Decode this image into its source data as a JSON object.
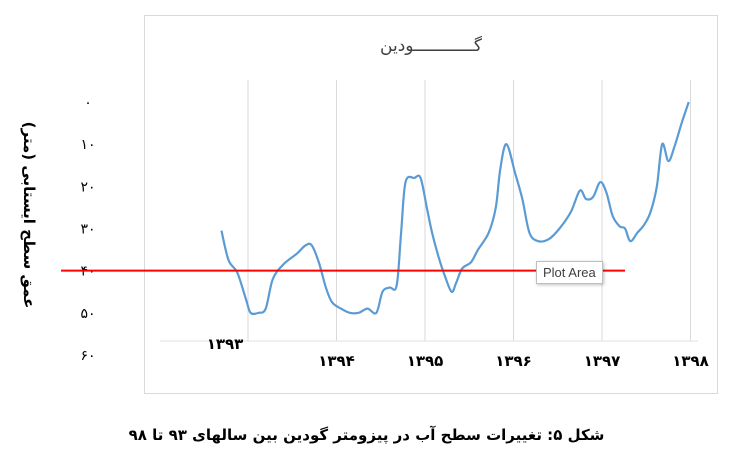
{
  "chart_data": {
    "type": "line",
    "title": "گــــــــــــودین",
    "ylabel": "عمق سطح ایستابی (متر)",
    "xlabel": "",
    "y_tick_labels": [
      "۰",
      "۱۰",
      "۲۰",
      "۳۰",
      "۴۰",
      "۵۰",
      "۶۰"
    ],
    "ylim": [
      0,
      60
    ],
    "y_inverted": true,
    "grid": {
      "horizontal": false,
      "vertical": true
    },
    "x_tick_labels": [
      {
        "label": "۱۳۹۳",
        "x": 0
      },
      {
        "label": "۱۳۹۴",
        "x": 1
      },
      {
        "label": "۱۳۹۵",
        "x": 2
      },
      {
        "label": "۱۳۹۶",
        "x": 3
      },
      {
        "label": "۱۳۹۷",
        "x": 4
      },
      {
        "label": "۱۳۹۸",
        "x": 5
      }
    ],
    "series": [
      {
        "color": "#5b9bd5",
        "points": [
          [
            -0.3,
            30.5
          ],
          [
            -0.22,
            37.5
          ],
          [
            -0.12,
            40.5
          ],
          [
            -0.02,
            47
          ],
          [
            0.03,
            50
          ],
          [
            0.12,
            50
          ],
          [
            0.2,
            49
          ],
          [
            0.28,
            42
          ],
          [
            0.4,
            38.5
          ],
          [
            0.55,
            36
          ],
          [
            0.65,
            34
          ],
          [
            0.72,
            34
          ],
          [
            0.8,
            38
          ],
          [
            0.88,
            44
          ],
          [
            0.95,
            47.5
          ],
          [
            1.05,
            49
          ],
          [
            1.15,
            50
          ],
          [
            1.25,
            50
          ],
          [
            1.35,
            49
          ],
          [
            1.45,
            50
          ],
          [
            1.52,
            45
          ],
          [
            1.6,
            44
          ],
          [
            1.68,
            43.5
          ],
          [
            1.73,
            31
          ],
          [
            1.78,
            19
          ],
          [
            1.88,
            18
          ],
          [
            1.95,
            18
          ],
          [
            2.02,
            25
          ],
          [
            2.08,
            31
          ],
          [
            2.15,
            36.5
          ],
          [
            2.22,
            41
          ],
          [
            2.3,
            45
          ],
          [
            2.35,
            43
          ],
          [
            2.42,
            39.5
          ],
          [
            2.52,
            38
          ],
          [
            2.6,
            35
          ],
          [
            2.72,
            31
          ],
          [
            2.8,
            25
          ],
          [
            2.85,
            16
          ],
          [
            2.92,
            10
          ],
          [
            3.02,
            17
          ],
          [
            3.1,
            23
          ],
          [
            3.18,
            31
          ],
          [
            3.28,
            33
          ],
          [
            3.4,
            32.5
          ],
          [
            3.52,
            30
          ],
          [
            3.65,
            26
          ],
          [
            3.75,
            21
          ],
          [
            3.82,
            23
          ],
          [
            3.9,
            22.5
          ],
          [
            3.98,
            19
          ],
          [
            4.05,
            21.5
          ],
          [
            4.12,
            27
          ],
          [
            4.2,
            29.5
          ],
          [
            4.26,
            30
          ],
          [
            4.32,
            33
          ],
          [
            4.4,
            31
          ],
          [
            4.48,
            29
          ],
          [
            4.55,
            26
          ],
          [
            4.62,
            20
          ],
          [
            4.68,
            10
          ],
          [
            4.75,
            14
          ],
          [
            4.82,
            10.5
          ],
          [
            4.9,
            5
          ],
          [
            4.98,
            0
          ]
        ]
      }
    ],
    "reference_line": {
      "y": 40,
      "color": "#ff0000"
    }
  },
  "caption": "شکل ۵: تغییرات سطح آب در پیزومتر گودین بین سالهای ۹۳ تا ۹۸",
  "tooltip": "Plot Area"
}
